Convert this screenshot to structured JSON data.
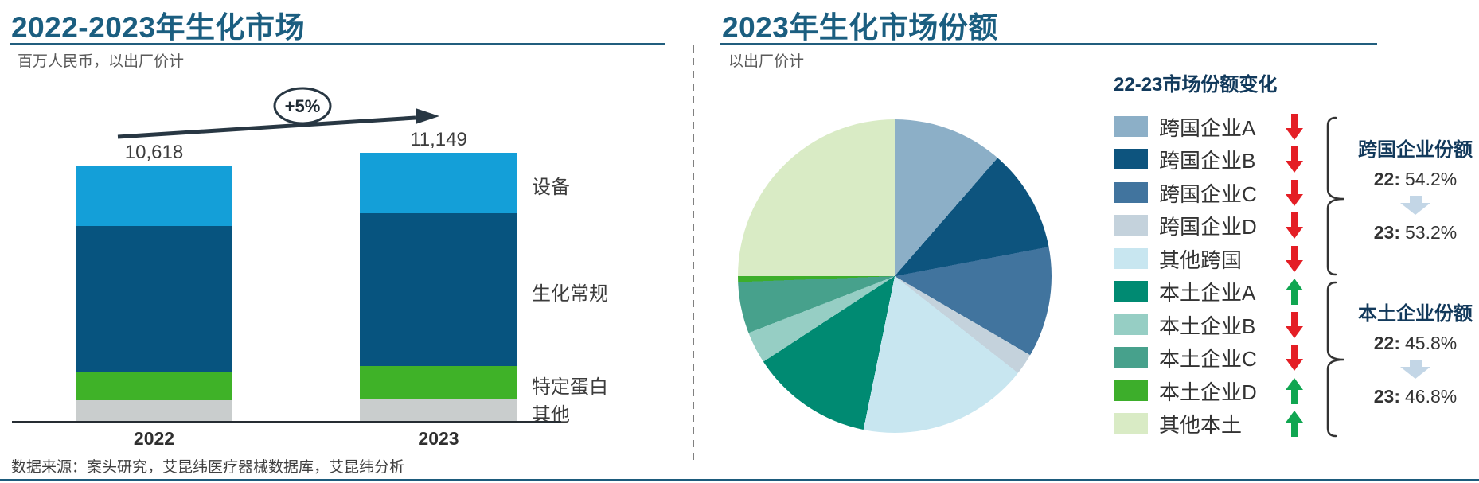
{
  "left_panel": {
    "source": "数据来源：案头研究，艾昆纬医疗器械数据库，艾昆纬分析"
  },
  "right_panel": {
    "summary": [
      {
        "title": "跨国企业份额",
        "from_label": "22:",
        "from_value": "54.2%",
        "to_label": "23:",
        "to_value": "53.2%",
        "arrow": "down"
      },
      {
        "title": "本土企业份额",
        "from_label": "22:",
        "from_value": "45.8%",
        "to_label": "23:",
        "to_value": "46.8%",
        "arrow": "down"
      }
    ]
  },
  "chart_data": [
    {
      "type": "bar",
      "title": "2022-2023年生化市场",
      "subtitle": "百万人民币，以出厂价计",
      "unit": "百万人民币",
      "categories": [
        "2022",
        "2023"
      ],
      "totals_display": [
        "10,618",
        "11,149"
      ],
      "totals": [
        10618,
        11149
      ],
      "growth_annotation": "+5%",
      "stack_order_bottom_to_top": [
        "其他",
        "特定蛋白",
        "生化常规",
        "设备"
      ],
      "series": [
        {
          "name": "其他",
          "color": "#C9CDCD",
          "values": [
            860,
            896
          ]
        },
        {
          "name": "特定蛋白",
          "color": "#3FB228",
          "values": [
            1191,
            1393
          ]
        },
        {
          "name": "生化常规",
          "color": "#07547F",
          "values": [
            6053,
            6338
          ]
        },
        {
          "name": "设备",
          "color": "#149FD8",
          "values": [
            2514,
            2522
          ]
        }
      ]
    },
    {
      "type": "pie",
      "title": "2023年生化市场份额",
      "subtitle": "以出厂价计",
      "legend_title": "22-23市场份额变化",
      "slices": [
        {
          "label": "跨国企业A",
          "value": 11.4,
          "color": "#8CAFC7",
          "trend": "down"
        },
        {
          "label": "跨国企业B",
          "value": 10.6,
          "color": "#0D547E",
          "trend": "down"
        },
        {
          "label": "跨国企业C",
          "value": 11.4,
          "color": "#41749E",
          "trend": "down"
        },
        {
          "label": "跨国企业D",
          "value": 2.2,
          "color": "#C4D2DC",
          "trend": "down"
        },
        {
          "label": "其他跨国",
          "value": 17.6,
          "color": "#C8E6F0",
          "trend": "down"
        },
        {
          "label": "本土企业A",
          "value": 12.6,
          "color": "#008A72",
          "trend": "up"
        },
        {
          "label": "本土企业B",
          "value": 3.3,
          "color": "#96CEC4",
          "trend": "down"
        },
        {
          "label": "本土企业C",
          "value": 5.3,
          "color": "#47A18C",
          "trend": "down"
        },
        {
          "label": "本土企业D",
          "value": 0.6,
          "color": "#3DAE2B",
          "trend": "up"
        },
        {
          "label": "其他本土",
          "value": 25.0,
          "color": "#D9EBC5",
          "trend": "up"
        }
      ]
    }
  ],
  "colors": {
    "title": "#1B5E80",
    "underline": "#215E7E",
    "legend_header": "#123A5C",
    "trend_up": "#10A651",
    "trend_down": "#E41E25",
    "summary_arrow": "#C3D6E6",
    "axis_line": "#262D33",
    "growth_arrow": "#283743"
  }
}
